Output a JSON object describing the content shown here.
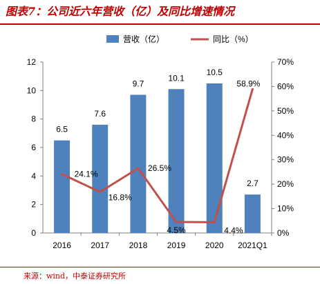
{
  "figure_title": "图表7：公司近六年营收（亿）及同比增速情况",
  "source": "来源：wind，中泰证券研究所",
  "colors": {
    "bar": "#4f81bd",
    "line": "#c0504d",
    "accent": "#c00000"
  },
  "chart_data": {
    "type": "bar+line",
    "categories": [
      "2016",
      "2017",
      "2018",
      "2019",
      "2020",
      "2021Q1"
    ],
    "series": [
      {
        "name": "营收（亿）",
        "type": "bar",
        "axis": "left",
        "values": [
          6.5,
          7.6,
          9.7,
          10.1,
          10.5,
          2.7
        ]
      },
      {
        "name": "同比（%）",
        "type": "line",
        "axis": "right",
        "values": [
          24.1,
          16.8,
          26.5,
          4.5,
          4.4,
          58.9
        ]
      }
    ],
    "bar_labels": [
      "6.5",
      "7.6",
      "9.7",
      "10.1",
      "10.5",
      "2.7"
    ],
    "line_labels": [
      "24.1%",
      "16.8%",
      "26.5%",
      "4.5%",
      "4.4%",
      "58.9%"
    ],
    "y_left": {
      "min": 0,
      "max": 12,
      "ticks": [
        "0",
        "2",
        "4",
        "6",
        "8",
        "10",
        "12"
      ]
    },
    "y_right": {
      "min": 0,
      "max": 70,
      "ticks": [
        "0%",
        "10%",
        "20%",
        "30%",
        "40%",
        "50%",
        "60%",
        "70%"
      ]
    },
    "legend_position": "top",
    "grid": false
  }
}
